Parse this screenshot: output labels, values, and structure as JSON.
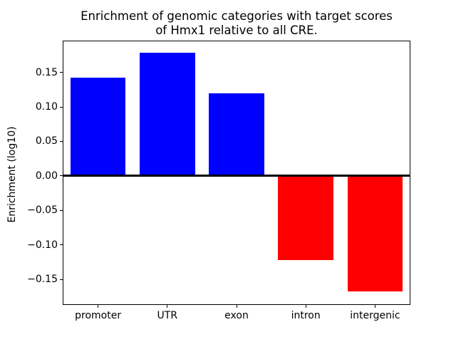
{
  "figure": {
    "title_line1": "Enrichment of genomic categories with target scores",
    "title_line2": "of Hmx1 relative to all CRE.",
    "ylabel": "Enrichment (log10)"
  },
  "chart_data": {
    "type": "bar",
    "title": "Enrichment of genomic categories with target scores\nof Hmx1 relative to all CRE.",
    "xlabel": "",
    "ylabel": "Enrichment (log10)",
    "categories": [
      "promoter",
      "UTR",
      "exon",
      "intron",
      "intergenic"
    ],
    "values": [
      0.142,
      0.178,
      0.12,
      -0.122,
      -0.167
    ],
    "bar_colors": [
      "#0000ff",
      "#0000ff",
      "#0000ff",
      "#ff0000",
      "#ff0000"
    ],
    "positive_color": "#0000ff",
    "negative_color": "#ff0000",
    "ylim": [
      -0.186,
      0.195
    ],
    "yticks": [
      0.15,
      0.1,
      0.05,
      0,
      -0.05,
      -0.1,
      -0.15
    ],
    "ytick_labels": [
      "0.15",
      "0.10",
      "0.05",
      "0.00",
      "−0.05",
      "−0.10",
      "−0.15"
    ],
    "bar_width_fraction": 0.8,
    "zero_line": true,
    "grid": false,
    "legend": false,
    "axis_color": "#000000",
    "background_color": "#ffffff"
  }
}
